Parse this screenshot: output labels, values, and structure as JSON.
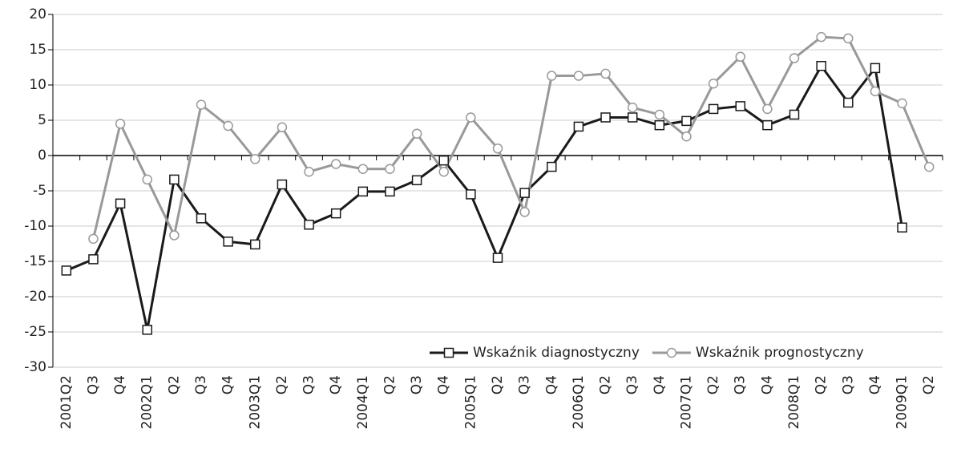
{
  "chart_data": {
    "type": "line",
    "categories": [
      "2001Q2",
      "Q3",
      "Q4",
      "2002Q1",
      "Q2",
      "Q3",
      "Q4",
      "2003Q1",
      "Q2",
      "Q3",
      "Q4",
      "2004Q1",
      "Q2",
      "Q3",
      "Q4",
      "2005Q1",
      "Q2",
      "Q3",
      "Q4",
      "2006Q1",
      "Q2",
      "Q3",
      "Q4",
      "2007Q1",
      "Q2",
      "Q3",
      "Q4",
      "2008Q1",
      "Q2",
      "Q3",
      "Q4",
      "2009Q1",
      "Q2"
    ],
    "series": [
      {
        "name": "Wskaźnik diagnostyczny",
        "color": "#1a1a1a",
        "marker": "square",
        "values": [
          -16.3,
          -14.7,
          -6.8,
          -24.7,
          -3.4,
          -8.9,
          -12.2,
          -12.6,
          -4.1,
          -9.8,
          -8.2,
          -5.1,
          -5.1,
          -3.5,
          -0.7,
          -5.5,
          -14.5,
          -5.3,
          -1.6,
          4.1,
          5.4,
          5.4,
          4.3,
          4.9,
          6.6,
          7.0,
          4.3,
          5.8,
          12.7,
          7.5,
          12.4,
          -10.2,
          null
        ]
      },
      {
        "name": "Wskaźnik prognostyczny",
        "color": "#999999",
        "marker": "circle",
        "values": [
          null,
          -11.8,
          4.5,
          -3.4,
          -11.3,
          7.2,
          4.2,
          -0.5,
          4.0,
          -2.3,
          -1.2,
          -1.9,
          -1.9,
          3.1,
          -2.3,
          5.4,
          1.0,
          -8.0,
          11.3,
          11.3,
          11.6,
          6.8,
          5.8,
          2.7,
          10.2,
          14.0,
          6.6,
          13.8,
          16.8,
          16.6,
          9.1,
          7.4,
          -1.6
        ]
      }
    ],
    "ylim": [
      -30,
      20
    ],
    "yticks": [
      -30,
      -25,
      -20,
      -15,
      -10,
      -5,
      0,
      5,
      10,
      15,
      20
    ],
    "grid": true,
    "legend": "lower right"
  }
}
